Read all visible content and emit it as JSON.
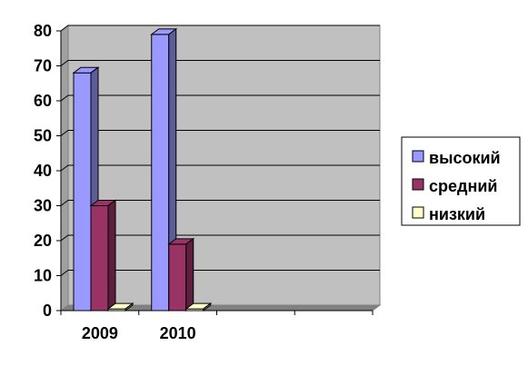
{
  "chart_data": {
    "type": "bar",
    "title": "",
    "xlabel": "",
    "ylabel": "",
    "categories": [
      "2009",
      "2010"
    ],
    "series": [
      {
        "name": "высокий",
        "values": [
          68,
          79
        ]
      },
      {
        "name": "средний",
        "values": [
          30,
          19
        ]
      },
      {
        "name": "низкий",
        "values": [
          0.5,
          0.5
        ]
      }
    ],
    "ylim": [
      0,
      80
    ],
    "yticks": [
      "0",
      "10",
      "20",
      "30",
      "40",
      "50",
      "60",
      "70",
      "80"
    ],
    "grid": true,
    "legend_position": "right",
    "colors": {
      "series": [
        "#9999ff",
        "#993366",
        "#ffffcc"
      ],
      "plot_background": "#c0c0c0"
    }
  }
}
